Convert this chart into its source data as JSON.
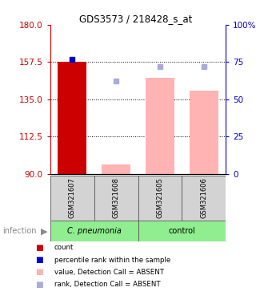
{
  "title": "GDS3573 / 218428_s_at",
  "samples": [
    "GSM321607",
    "GSM321608",
    "GSM321605",
    "GSM321606"
  ],
  "bar_values": [
    157.5,
    96.0,
    148.0,
    140.0
  ],
  "bar_colors": [
    "#cc0000",
    "#ffb3b3",
    "#ffb3b3",
    "#ffb3b3"
  ],
  "rank_present": [
    77.0,
    null,
    null,
    null
  ],
  "rank_present_color": "#0000cc",
  "rank_absent": [
    null,
    62.0,
    72.0,
    72.0
  ],
  "rank_absent_color": "#aaaadd",
  "ylim_left": [
    90,
    180
  ],
  "ylim_right": [
    0,
    100
  ],
  "yticks_left": [
    90,
    112.5,
    135,
    157.5,
    180
  ],
  "yticks_right": [
    0,
    25,
    50,
    75,
    100
  ],
  "left_color": "#cc0000",
  "right_color": "#0000cc",
  "group_names": [
    "C. pneumonia",
    "control"
  ],
  "group_ranges": [
    [
      0,
      2
    ],
    [
      2,
      4
    ]
  ],
  "legend_items": [
    {
      "label": "count",
      "color": "#cc0000"
    },
    {
      "label": "percentile rank within the sample",
      "color": "#0000cc"
    },
    {
      "label": "value, Detection Call = ABSENT",
      "color": "#ffb3b3"
    },
    {
      "label": "rank, Detection Call = ABSENT",
      "color": "#aaaadd"
    }
  ]
}
